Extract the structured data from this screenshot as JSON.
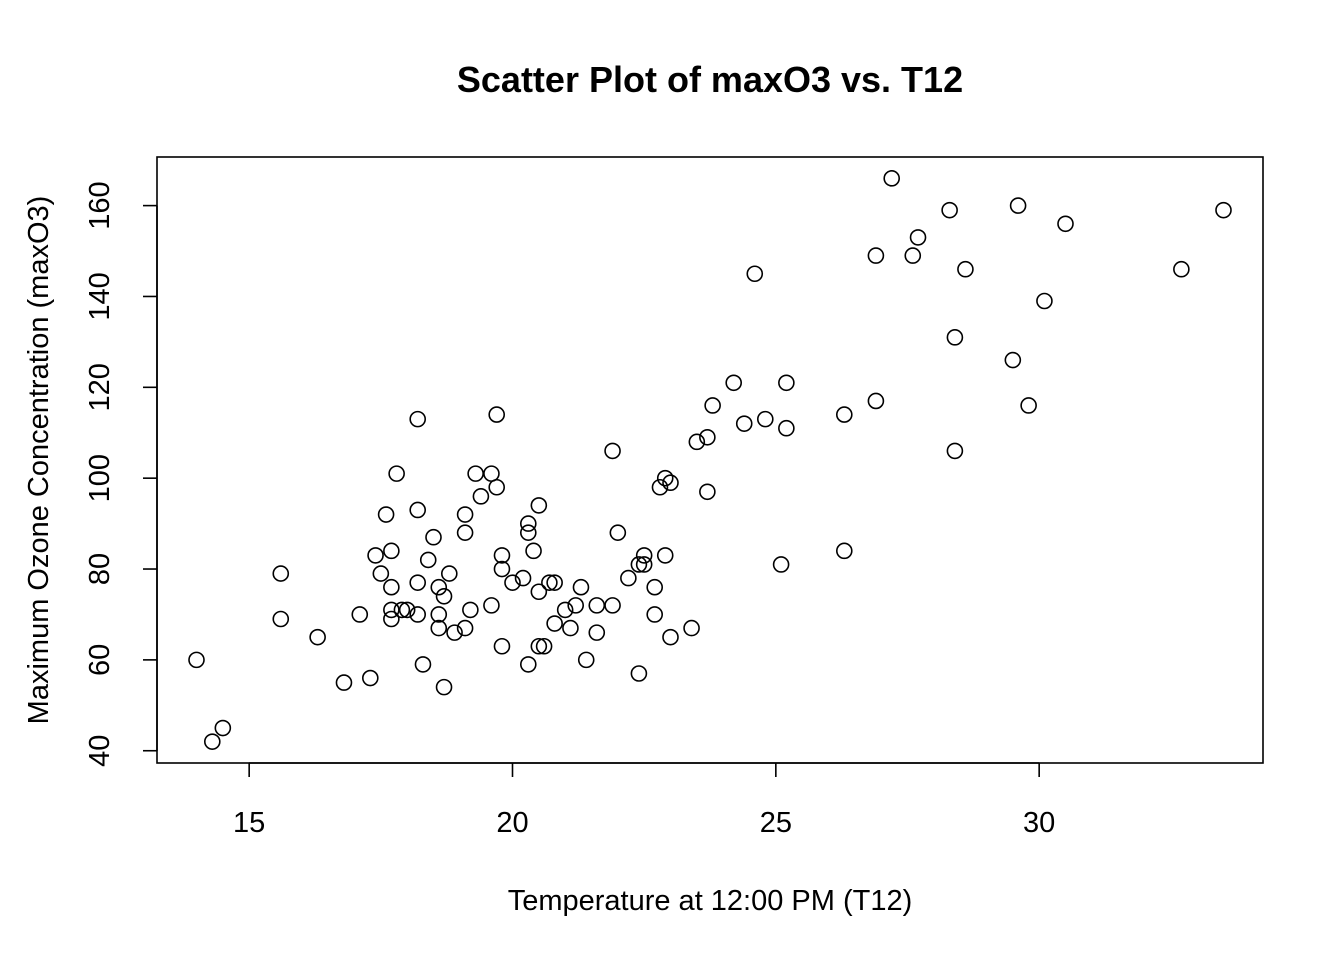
{
  "chart_data": {
    "type": "scatter",
    "title": "Scatter Plot of maxO3 vs. T12",
    "xlabel": "Temperature at 12:00 PM (T12)",
    "ylabel": "Maximum Ozone Concentration (maxO3)",
    "xlim": [
      13.25,
      34.25
    ],
    "ylim": [
      37.3,
      170.7
    ],
    "x_ticks": [
      15,
      20,
      25,
      30
    ],
    "y_ticks": [
      40,
      60,
      80,
      100,
      120,
      140,
      160
    ],
    "grid": false,
    "legend": "none",
    "marker_color": "#000000",
    "points": [
      {
        "x": 14.0,
        "y": 60
      },
      {
        "x": 14.3,
        "y": 42
      },
      {
        "x": 14.5,
        "y": 45
      },
      {
        "x": 15.6,
        "y": 79
      },
      {
        "x": 15.6,
        "y": 69
      },
      {
        "x": 16.3,
        "y": 65
      },
      {
        "x": 16.8,
        "y": 55
      },
      {
        "x": 17.1,
        "y": 70
      },
      {
        "x": 17.3,
        "y": 56
      },
      {
        "x": 17.4,
        "y": 83
      },
      {
        "x": 17.5,
        "y": 79
      },
      {
        "x": 17.6,
        "y": 92
      },
      {
        "x": 17.7,
        "y": 84
      },
      {
        "x": 17.7,
        "y": 76
      },
      {
        "x": 17.7,
        "y": 71
      },
      {
        "x": 17.7,
        "y": 69
      },
      {
        "x": 17.8,
        "y": 101
      },
      {
        "x": 17.9,
        "y": 71
      },
      {
        "x": 18.0,
        "y": 71
      },
      {
        "x": 18.2,
        "y": 113
      },
      {
        "x": 18.2,
        "y": 93
      },
      {
        "x": 18.2,
        "y": 77
      },
      {
        "x": 18.2,
        "y": 70
      },
      {
        "x": 18.3,
        "y": 59
      },
      {
        "x": 18.4,
        "y": 82
      },
      {
        "x": 18.5,
        "y": 87
      },
      {
        "x": 18.6,
        "y": 76
      },
      {
        "x": 18.6,
        "y": 70
      },
      {
        "x": 18.6,
        "y": 67
      },
      {
        "x": 18.7,
        "y": 74
      },
      {
        "x": 18.7,
        "y": 54
      },
      {
        "x": 18.8,
        "y": 79
      },
      {
        "x": 18.9,
        "y": 66
      },
      {
        "x": 19.1,
        "y": 92
      },
      {
        "x": 19.1,
        "y": 88
      },
      {
        "x": 19.1,
        "y": 67
      },
      {
        "x": 19.2,
        "y": 71
      },
      {
        "x": 19.3,
        "y": 101
      },
      {
        "x": 19.4,
        "y": 96
      },
      {
        "x": 19.6,
        "y": 101
      },
      {
        "x": 19.6,
        "y": 72
      },
      {
        "x": 19.7,
        "y": 114
      },
      {
        "x": 19.7,
        "y": 98
      },
      {
        "x": 19.8,
        "y": 83
      },
      {
        "x": 19.8,
        "y": 80
      },
      {
        "x": 19.8,
        "y": 63
      },
      {
        "x": 20.0,
        "y": 77
      },
      {
        "x": 20.2,
        "y": 78
      },
      {
        "x": 20.3,
        "y": 90
      },
      {
        "x": 20.3,
        "y": 88
      },
      {
        "x": 20.3,
        "y": 59
      },
      {
        "x": 20.4,
        "y": 84
      },
      {
        "x": 20.5,
        "y": 94
      },
      {
        "x": 20.5,
        "y": 75
      },
      {
        "x": 20.5,
        "y": 63
      },
      {
        "x": 20.6,
        "y": 63
      },
      {
        "x": 20.7,
        "y": 77
      },
      {
        "x": 20.8,
        "y": 77
      },
      {
        "x": 20.8,
        "y": 68
      },
      {
        "x": 21.0,
        "y": 71
      },
      {
        "x": 21.1,
        "y": 67
      },
      {
        "x": 21.2,
        "y": 72
      },
      {
        "x": 21.3,
        "y": 76
      },
      {
        "x": 21.4,
        "y": 60
      },
      {
        "x": 21.6,
        "y": 72
      },
      {
        "x": 21.6,
        "y": 66
      },
      {
        "x": 21.9,
        "y": 106
      },
      {
        "x": 21.9,
        "y": 72
      },
      {
        "x": 22.0,
        "y": 88
      },
      {
        "x": 22.2,
        "y": 78
      },
      {
        "x": 22.4,
        "y": 81
      },
      {
        "x": 22.4,
        "y": 57
      },
      {
        "x": 22.5,
        "y": 83
      },
      {
        "x": 22.5,
        "y": 81
      },
      {
        "x": 22.7,
        "y": 76
      },
      {
        "x": 22.7,
        "y": 70
      },
      {
        "x": 22.8,
        "y": 98
      },
      {
        "x": 22.9,
        "y": 100
      },
      {
        "x": 22.9,
        "y": 83
      },
      {
        "x": 23.0,
        "y": 99
      },
      {
        "x": 23.0,
        "y": 65
      },
      {
        "x": 23.4,
        "y": 67
      },
      {
        "x": 23.5,
        "y": 108
      },
      {
        "x": 23.7,
        "y": 109
      },
      {
        "x": 23.7,
        "y": 97
      },
      {
        "x": 23.8,
        "y": 116
      },
      {
        "x": 24.2,
        "y": 121
      },
      {
        "x": 24.4,
        "y": 112
      },
      {
        "x": 24.6,
        "y": 145
      },
      {
        "x": 24.8,
        "y": 113
      },
      {
        "x": 25.1,
        "y": 81
      },
      {
        "x": 25.2,
        "y": 121
      },
      {
        "x": 25.2,
        "y": 111
      },
      {
        "x": 26.3,
        "y": 114
      },
      {
        "x": 26.3,
        "y": 84
      },
      {
        "x": 26.9,
        "y": 149
      },
      {
        "x": 26.9,
        "y": 117
      },
      {
        "x": 27.2,
        "y": 166
      },
      {
        "x": 27.6,
        "y": 149
      },
      {
        "x": 27.7,
        "y": 153
      },
      {
        "x": 28.3,
        "y": 159
      },
      {
        "x": 28.4,
        "y": 131
      },
      {
        "x": 28.4,
        "y": 106
      },
      {
        "x": 28.6,
        "y": 146
      },
      {
        "x": 29.5,
        "y": 126
      },
      {
        "x": 29.6,
        "y": 160
      },
      {
        "x": 29.8,
        "y": 116
      },
      {
        "x": 30.1,
        "y": 139
      },
      {
        "x": 30.5,
        "y": 156
      },
      {
        "x": 32.7,
        "y": 146
      },
      {
        "x": 33.5,
        "y": 159
      }
    ]
  }
}
